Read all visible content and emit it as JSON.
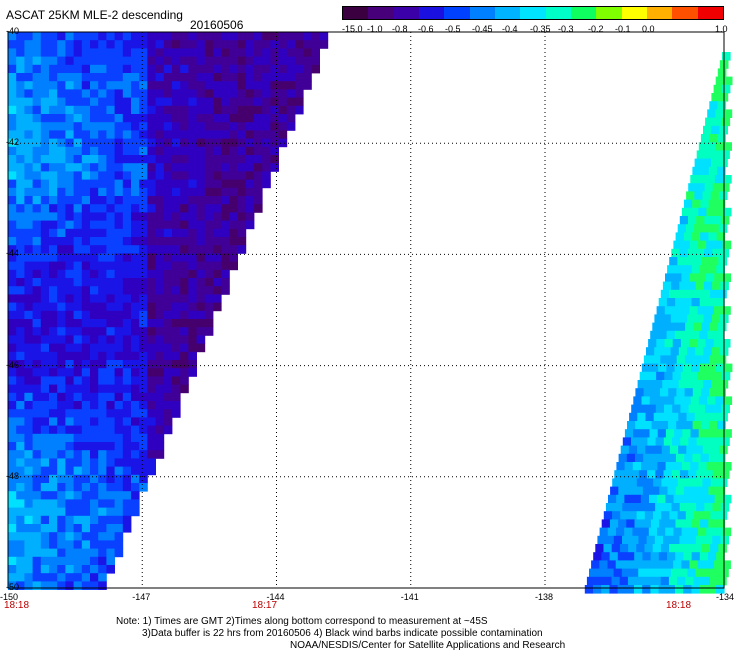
{
  "header": {
    "title": "ASCAT 25KM MLE-2 descending",
    "date": "20160506"
  },
  "colorbar": {
    "labels": [
      "-15.0",
      "-1.0",
      "-0.8",
      "-0.6",
      "-0.5",
      "-0.45",
      "-0.4",
      "-0.35",
      "-0.3",
      "-0.2",
      "-0.1",
      "0.0",
      "1.0"
    ],
    "colors": [
      "#3a0040",
      "#48007a",
      "#3c00a8",
      "#1a10e0",
      "#0040ff",
      "#0080ff",
      "#00b4ff",
      "#00e4ff",
      "#00ffc8",
      "#10ff60",
      "#80ff00",
      "#ffff00",
      "#ffb000",
      "#ff5000",
      "#f00000"
    ]
  },
  "chart_data": {
    "type": "heatmap",
    "title": "ASCAT 25KM MLE-2 descending",
    "xlim": [
      -150,
      -134
    ],
    "ylim": [
      -50,
      -40
    ],
    "x_ticks": [
      "-150",
      "-147",
      "-144",
      "-141",
      "-138",
      "-134"
    ],
    "y_ticks": [
      "-40",
      "-42",
      "-44",
      "-46",
      "-48",
      "-50"
    ],
    "grid": true,
    "scale": "MLE",
    "swaths": [
      {
        "name": "left-swath",
        "lon_range": [
          -150,
          -143.3
        ],
        "dominant_values": "-1.0 to -0.45"
      },
      {
        "name": "right-swath",
        "lon_range": [
          -138,
          -134
        ],
        "dominant_values": "-0.6 to -0.3"
      }
    ]
  },
  "axes": {
    "x_labels": [
      "-150",
      "-147",
      "-144",
      "-141",
      "-138",
      "-134"
    ],
    "y_labels": [
      "-40",
      "-42",
      "-44",
      "-46",
      "-48",
      "-50"
    ]
  },
  "times": {
    "left": "18:18",
    "mid": "18:17",
    "right": "18:18"
  },
  "notes": {
    "line1": "Note: 1) Times are GMT 2)Times along bottom correspond to measurement at ~45S",
    "line2": "3)Data buffer is 22 hrs from 20160506 4) Black wind barbs indicate possible contamination",
    "line3": "NOAA/NESDIS/Center for Satellite Applications and Research"
  }
}
